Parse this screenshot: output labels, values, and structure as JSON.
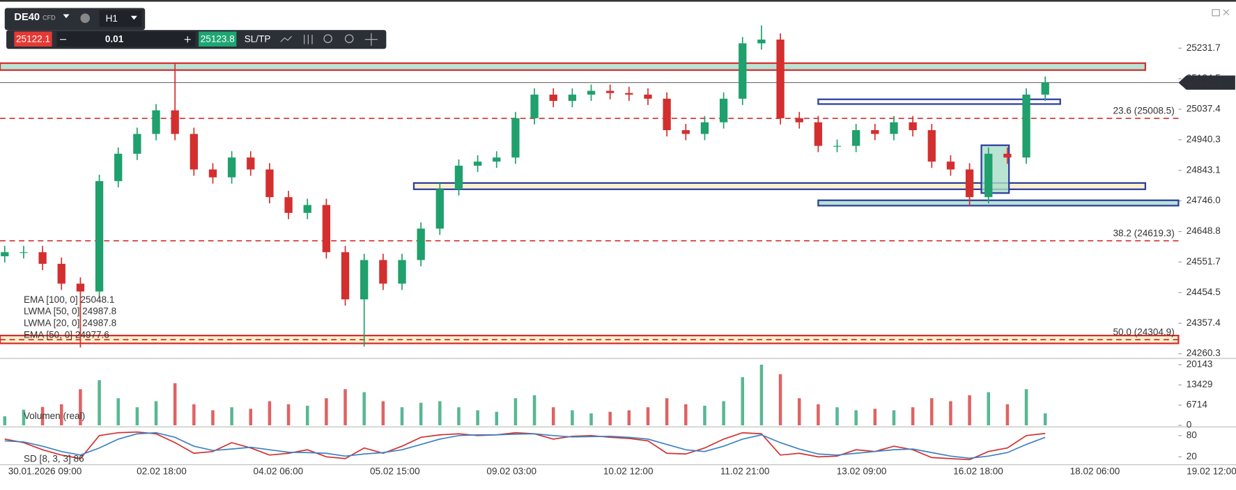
{
  "toolbar": {
    "symbol": "DE40",
    "symbol_type": "CFD",
    "timeframe": "H1",
    "bid": 25122.1,
    "quantity": 0.01,
    "ask": 25123.8,
    "sltp": "SL/TP"
  },
  "chart_data": {
    "type": "candlestick",
    "x_labels": [
      "30.01.2026 09:00",
      "02.02 18:00",
      "04.02 06:00",
      "05.02 15:00",
      "09.02 03:00",
      "10.02 12:00",
      "11.02 21:00",
      "13.02 09:00",
      "16.02 18:00",
      "18.02 06:00",
      "19.02 12:00"
    ],
    "open": [
      24570,
      24583,
      24583,
      24546,
      24483,
      24458,
      24809,
      24896,
      24959,
      25034,
      24959,
      24846,
      24821,
      24884,
      24846,
      24758,
      24708,
      24733,
      24583,
      24433,
      24558,
      24483,
      24558,
      24658,
      24783,
      24858,
      24871,
      24884,
      25009,
      25084,
      25064,
      25084,
      25096,
      25089,
      25084,
      25071,
      24971,
      24959,
      24996,
      25071,
      25247,
      25259,
      25009,
      24996,
      24921,
      24921,
      24971,
      24959,
      24996,
      24971,
      24871,
      24846,
      24758,
      24896,
      24884,
      25084
    ],
    "high": [
      24603,
      24603,
      24603,
      24566,
      24503,
      24829,
      24916,
      24979,
      25054,
      25184,
      24979,
      24866,
      24904,
      24904,
      24866,
      24778,
      24753,
      24753,
      24603,
      24578,
      24578,
      24578,
      24678,
      24803,
      24878,
      24891,
      24904,
      25029,
      25104,
      25104,
      25104,
      25116,
      25116,
      25109,
      25104,
      25091,
      24991,
      25016,
      25091,
      25267,
      25304,
      25279,
      25029,
      25016,
      24941,
      24991,
      24991,
      25016,
      25016,
      24991,
      24891,
      24866,
      24916,
      24916,
      25104,
      25142
    ],
    "low": [
      24550,
      24563,
      24526,
      24463,
      24280,
      24438,
      24789,
      24876,
      24939,
      24939,
      24826,
      24801,
      24801,
      24826,
      24738,
      24688,
      24688,
      24563,
      24413,
      24283,
      24463,
      24463,
      24538,
      24638,
      24763,
      24838,
      24851,
      24864,
      24989,
      25044,
      25044,
      25064,
      25069,
      25064,
      25051,
      24951,
      24939,
      24939,
      24976,
      25051,
      25227,
      24989,
      24976,
      24901,
      24901,
      24901,
      24939,
      24939,
      24951,
      24851,
      24826,
      24730,
      24738,
      24864,
      24864,
      25064
    ],
    "close": [
      24583,
      24583,
      24546,
      24483,
      24458,
      24809,
      24896,
      24959,
      25034,
      24959,
      24846,
      24821,
      24884,
      24846,
      24758,
      24708,
      24733,
      24583,
      24433,
      24558,
      24483,
      24558,
      24658,
      24783,
      24858,
      24871,
      24884,
      25009,
      25084,
      25064,
      25084,
      25096,
      25089,
      25084,
      25071,
      24971,
      24959,
      24996,
      25071,
      25247,
      25259,
      25009,
      24996,
      24921,
      24921,
      24971,
      24959,
      24996,
      24971,
      24871,
      24846,
      24758,
      24896,
      24884,
      25084,
      25122.1
    ],
    "up_color": "#1fa06c",
    "down_color": "#d32f2f",
    "ylim": [
      24245.3,
      25384.5
    ],
    "yticks": [
      24260.3,
      24357.4,
      24454.5,
      24551.7,
      24648.8,
      {
        "value": 24746,
        "label": "24746.0"
      },
      24843.1,
      24940.3,
      25037.4,
      25134.5,
      25231.7
    ],
    "current_price": 25122.1,
    "levels": [
      {
        "label": "23.6 (25008.5)",
        "value": 25008.5
      },
      {
        "label": "38.2 (24619.3)",
        "value": 24619.3
      },
      {
        "label": "50.0 (24304.9)",
        "value": 24304.9
      }
    ],
    "zones": [
      {
        "top": 25184,
        "bottom": 25162,
        "fill": "#a8dcc8",
        "edge": "#d32f2f"
      },
      {
        "top": 25069,
        "bottom": 25054,
        "fill": "#ffffff",
        "edge": "#2c3e9e"
      },
      {
        "top": 24803,
        "bottom": 24783,
        "fill": "#fbeec0",
        "edge": "#2c3e9e"
      },
      {
        "top": 24748,
        "bottom": 24731,
        "fill": "#a8dcc8",
        "edge": "#2c3e9e"
      },
      {
        "top": 24318,
        "bottom": 24293,
        "fill": "#fbeec0",
        "edge": "#d32f2f"
      },
      {
        "top": 24923,
        "bottom": 24771,
        "fill": "#a8dcc8",
        "edge": "#2c3e9e"
      }
    ],
    "indicators": [
      "EMA [100, 0] 25048.1",
      "LWMA [50, 0] 24987.8",
      "LWMA [20, 0] 24987.8",
      "EMA [50, 0] 24977.6"
    ],
    "volume": {
      "label": "Volumen (real)",
      "ylim": [
        0,
        22236
      ],
      "yticks": [
        0,
        6714,
        13429,
        20143
      ],
      "values": [
        3000,
        5200,
        6100,
        7000,
        12000,
        15000,
        9000,
        6000,
        8000,
        14000,
        7000,
        5000,
        6000,
        5500,
        8000,
        7000,
        6500,
        9000,
        12000,
        11000,
        8000,
        6000,
        7500,
        8000,
        6000,
        5000,
        4500,
        9000,
        10000,
        6000,
        5000,
        4000,
        4500,
        5000,
        6000,
        9000,
        7000,
        6500,
        8000,
        16000,
        20143,
        17000,
        9000,
        7000,
        6000,
        5000,
        5500,
        5000,
        6000,
        9000,
        8000,
        10000,
        11000,
        7000,
        12000,
        4000
      ]
    },
    "stochastic": {
      "label": "SD [8, 3, 3] 86",
      "ylim": [
        0,
        100
      ],
      "yticks": [
        20,
        80
      ],
      "k_color": "#d32f2f",
      "d_color": "#3b82c4",
      "k": [
        70,
        60,
        40,
        25,
        15,
        80,
        88,
        90,
        85,
        60,
        30,
        35,
        60,
        45,
        25,
        30,
        40,
        20,
        15,
        45,
        30,
        50,
        75,
        82,
        85,
        80,
        82,
        88,
        85,
        70,
        78,
        80,
        75,
        72,
        65,
        30,
        28,
        45,
        70,
        88,
        85,
        25,
        30,
        20,
        22,
        40,
        35,
        50,
        40,
        18,
        15,
        12,
        35,
        45,
        80,
        86
      ],
      "d": [
        65,
        62,
        50,
        35,
        25,
        45,
        70,
        85,
        88,
        75,
        50,
        38,
        42,
        47,
        40,
        33,
        32,
        30,
        22,
        28,
        32,
        40,
        55,
        70,
        80,
        82,
        82,
        84,
        85,
        80,
        76,
        77,
        78,
        75,
        70,
        55,
        40,
        35,
        50,
        70,
        82,
        60,
        42,
        28,
        25,
        30,
        35,
        40,
        42,
        32,
        22,
        16,
        22,
        32,
        55,
        75
      ]
    }
  }
}
